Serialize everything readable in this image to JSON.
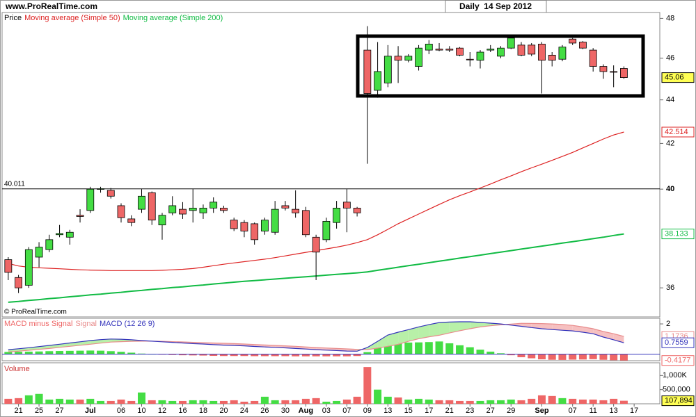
{
  "header": {
    "site": "www.ProRealTime.com",
    "period": "Daily  14 Sep 2012"
  },
  "chart_data": [
    {
      "type": "candlestick",
      "log_scale": true,
      "ylim": [
        34.9,
        48.3
      ],
      "yticks": [
        36,
        40,
        42,
        44,
        46,
        48
      ],
      "hline": 40.011,
      "footer": "© ProRealTime.com",
      "price": {
        "name": "Price",
        "up_color": "#44dd44",
        "down_color": "#ee6666",
        "open": [
          37.1,
          36.4,
          36.1,
          37.2,
          37.5,
          38.1,
          38.0,
          38.9,
          39.1,
          40.0,
          39.95,
          39.3,
          38.75,
          39.15,
          39.85,
          38.5,
          39.0,
          39.15,
          39.1,
          39.0,
          39.2,
          39.2,
          38.7,
          38.6,
          38.55,
          38.25,
          38.2,
          39.3,
          39.15,
          39.1,
          38.0,
          37.9,
          38.6,
          39.45,
          39.2,
          46.4,
          44.45,
          44.8,
          46.1,
          45.9,
          45.6,
          46.4,
          46.45,
          46.45,
          46.5,
          45.95,
          45.9,
          46.4,
          46.1,
          46.5,
          46.65,
          46.65,
          46.7,
          46.15,
          45.95,
          46.95,
          46.8,
          46.4,
          45.6,
          45.35,
          45.5
        ],
        "high": [
          37.2,
          36.5,
          37.6,
          37.8,
          38.1,
          38.5,
          38.3,
          39.15,
          40.1,
          40.1,
          40.05,
          39.4,
          38.9,
          40.0,
          39.9,
          39.0,
          39.7,
          39.45,
          40.0,
          39.35,
          39.65,
          39.3,
          38.8,
          38.7,
          38.6,
          38.8,
          39.5,
          39.5,
          39.95,
          39.25,
          38.1,
          38.8,
          39.5,
          40.0,
          39.25,
          47.6,
          46.8,
          46.65,
          46.6,
          46.2,
          46.65,
          46.9,
          46.75,
          46.6,
          46.55,
          46.3,
          46.4,
          46.65,
          46.6,
          47.1,
          46.8,
          46.75,
          46.8,
          46.3,
          46.65,
          47.0,
          46.85,
          46.5,
          45.7,
          45.65,
          45.6
        ],
        "low": [
          36.3,
          35.8,
          36.0,
          36.8,
          37.4,
          38.0,
          37.7,
          38.6,
          39.0,
          39.85,
          39.6,
          38.6,
          38.45,
          39.0,
          38.5,
          37.9,
          38.9,
          38.75,
          38.6,
          38.75,
          39.0,
          39.0,
          38.25,
          38.0,
          37.7,
          38.1,
          38.1,
          39.1,
          38.8,
          38.0,
          36.3,
          37.8,
          38.35,
          38.2,
          38.85,
          41.1,
          44.1,
          44.6,
          44.8,
          45.8,
          45.4,
          46.2,
          46.35,
          46.3,
          46.1,
          45.6,
          45.5,
          46.3,
          46.0,
          46.45,
          46.1,
          46.1,
          44.3,
          45.6,
          45.85,
          46.65,
          46.45,
          45.35,
          45.0,
          44.6,
          45.0
        ],
        "close": [
          36.6,
          36.0,
          37.5,
          37.6,
          37.9,
          38.15,
          38.2,
          38.85,
          40.0,
          40.02,
          39.7,
          38.8,
          38.6,
          39.7,
          38.7,
          38.9,
          39.3,
          38.95,
          39.2,
          39.2,
          39.45,
          39.1,
          38.35,
          38.25,
          37.9,
          38.7,
          39.15,
          39.2,
          39.0,
          38.1,
          37.4,
          38.65,
          39.2,
          39.2,
          39.0,
          44.3,
          45.35,
          46.1,
          45.9,
          46.1,
          46.5,
          46.7,
          46.4,
          46.4,
          46.15,
          45.92,
          46.3,
          46.45,
          46.5,
          47.0,
          46.15,
          46.2,
          45.9,
          45.9,
          46.55,
          46.75,
          46.5,
          45.6,
          45.35,
          45.33,
          45.06
        ]
      },
      "series": [
        {
          "name": "Moving average (Simple 50)",
          "color": "#dd2222",
          "values": [
            36.95,
            36.85,
            36.8,
            36.78,
            36.76,
            36.74,
            36.72,
            36.7,
            36.69,
            36.68,
            36.67,
            36.67,
            36.67,
            36.67,
            36.67,
            36.68,
            36.7,
            36.72,
            36.75,
            36.8,
            36.86,
            36.92,
            36.97,
            37.02,
            37.07,
            37.12,
            37.18,
            37.25,
            37.32,
            37.39,
            37.46,
            37.53,
            37.6,
            37.68,
            37.78,
            37.9,
            38.1,
            38.32,
            38.55,
            38.75,
            38.95,
            39.15,
            39.35,
            39.55,
            39.72,
            39.88,
            40.05,
            40.22,
            40.4,
            40.57,
            40.75,
            40.92,
            41.08,
            41.25,
            41.42,
            41.6,
            41.8,
            42.0,
            42.2,
            42.38,
            42.514
          ]
        },
        {
          "name": "Moving average (Simple 200)",
          "color": "#11bb44",
          "values": [
            35.45,
            35.48,
            35.52,
            35.55,
            35.59,
            35.62,
            35.66,
            35.69,
            35.73,
            35.76,
            35.8,
            35.83,
            35.87,
            35.9,
            35.94,
            35.97,
            36.01,
            36.04,
            36.08,
            36.11,
            36.15,
            36.18,
            36.22,
            36.25,
            36.28,
            36.31,
            36.34,
            36.37,
            36.4,
            36.43,
            36.46,
            36.49,
            36.52,
            36.55,
            36.58,
            36.62,
            36.68,
            36.74,
            36.8,
            36.86,
            36.92,
            36.98,
            37.04,
            37.1,
            37.16,
            37.22,
            37.28,
            37.34,
            37.4,
            37.46,
            37.52,
            37.58,
            37.64,
            37.7,
            37.76,
            37.82,
            37.88,
            37.94,
            38.0,
            38.07,
            38.133
          ]
        }
      ]
    },
    {
      "type": "macd",
      "ylim": [
        -0.43,
        2.37
      ],
      "yticks": [
        2
      ],
      "series": [
        {
          "name": "MACD minus Signal",
          "color": "#ee6666",
          "up_color": "#44dd44",
          "down_color": "#ee6666",
          "values": [
            0.15,
            0.16,
            0.17,
            0.18,
            0.2,
            0.21,
            0.22,
            0.23,
            0.24,
            0.23,
            0.2,
            0.16,
            0.1,
            0.04,
            0.0,
            -0.03,
            -0.05,
            -0.07,
            -0.08,
            -0.09,
            -0.11,
            -0.12,
            -0.12,
            -0.12,
            -0.13,
            -0.13,
            -0.13,
            -0.13,
            -0.14,
            -0.14,
            -0.14,
            -0.14,
            -0.14,
            -0.14,
            -0.12,
            0.14,
            0.45,
            0.75,
            0.8,
            0.77,
            0.78,
            0.8,
            0.84,
            0.72,
            0.59,
            0.46,
            0.3,
            0.17,
            0.06,
            -0.07,
            -0.2,
            -0.27,
            -0.34,
            -0.37,
            -0.38,
            -0.36,
            -0.35,
            -0.33,
            -0.37,
            -0.4,
            -0.4177
          ]
        },
        {
          "name": "Signal",
          "color": "#e88c8c",
          "values": [
            0.15,
            0.2,
            0.26,
            0.32,
            0.38,
            0.45,
            0.52,
            0.59,
            0.66,
            0.73,
            0.8,
            0.83,
            0.85,
            0.86,
            0.86,
            0.85,
            0.83,
            0.81,
            0.78,
            0.76,
            0.74,
            0.72,
            0.7,
            0.67,
            0.64,
            0.61,
            0.58,
            0.55,
            0.52,
            0.48,
            0.44,
            0.41,
            0.38,
            0.35,
            0.32,
            0.3,
            0.4,
            0.52,
            0.65,
            0.85,
            1.02,
            1.15,
            1.25,
            1.4,
            1.55,
            1.68,
            1.8,
            1.88,
            1.94,
            1.99,
            2.04,
            2.03,
            2.02,
            2.0,
            1.96,
            1.9,
            1.8,
            1.68,
            1.5,
            1.35,
            1.1736
          ]
        },
        {
          "name": "MACD (12 26 9)",
          "color": "#3333bb",
          "values": [
            0.3,
            0.36,
            0.43,
            0.5,
            0.58,
            0.66,
            0.74,
            0.82,
            0.9,
            0.96,
            1.0,
            0.99,
            0.95,
            0.9,
            0.86,
            0.82,
            0.78,
            0.74,
            0.7,
            0.67,
            0.63,
            0.6,
            0.58,
            0.55,
            0.51,
            0.48,
            0.45,
            0.42,
            0.38,
            0.34,
            0.3,
            0.27,
            0.24,
            0.21,
            0.2,
            0.44,
            0.85,
            1.27,
            1.45,
            1.62,
            1.8,
            1.95,
            2.09,
            2.12,
            2.14,
            2.14,
            2.1,
            2.05,
            2.0,
            1.92,
            1.84,
            1.76,
            1.68,
            1.63,
            1.58,
            1.54,
            1.45,
            1.35,
            1.13,
            0.95,
            0.7559
          ]
        }
      ]
    },
    {
      "type": "bar",
      "title": "Volume",
      "ylim": [
        0,
        1450000
      ],
      "yticks": [
        {
          "value": 1000000,
          "label": "1,000K"
        },
        {
          "value": 500000,
          "label": "500,000"
        }
      ],
      "values": [
        175000,
        200000,
        300000,
        350000,
        150000,
        175000,
        150000,
        150000,
        175000,
        100000,
        100000,
        150000,
        100000,
        400000,
        125000,
        125000,
        100000,
        100000,
        125000,
        125000,
        100000,
        100000,
        125000,
        75000,
        100000,
        250000,
        125000,
        125000,
        125000,
        175000,
        200000,
        75000,
        100000,
        150000,
        250000,
        1300000,
        500000,
        250000,
        225000,
        150000,
        175000,
        150000,
        125000,
        125000,
        100000,
        100000,
        100000,
        125000,
        125000,
        150000,
        125000,
        175000,
        300000,
        275000,
        200000,
        175000,
        150000,
        150000,
        125000,
        175000,
        107894
      ],
      "last_value_label": "107,894",
      "xlim": [
        -0.6,
        63.5
      ],
      "xticks": [
        {
          "value": 1,
          "label": "21"
        },
        {
          "value": 3,
          "label": "25"
        },
        {
          "value": 5,
          "label": "27"
        },
        {
          "value": 8,
          "label": "Jul"
        },
        {
          "value": 11,
          "label": "06"
        },
        {
          "value": 13,
          "label": "10"
        },
        {
          "value": 15,
          "label": "12"
        },
        {
          "value": 17,
          "label": "16"
        },
        {
          "value": 19,
          "label": "18"
        },
        {
          "value": 21,
          "label": "20"
        },
        {
          "value": 23,
          "label": "24"
        },
        {
          "value": 25,
          "label": "26"
        },
        {
          "value": 27,
          "label": "30"
        },
        {
          "value": 29,
          "label": "Aug"
        },
        {
          "value": 31,
          "label": "03"
        },
        {
          "value": 33,
          "label": "07"
        },
        {
          "value": 35,
          "label": "09"
        },
        {
          "value": 37,
          "label": "13"
        },
        {
          "value": 39,
          "label": "15"
        },
        {
          "value": 41,
          "label": "17"
        },
        {
          "value": 43,
          "label": "21"
        },
        {
          "value": 45,
          "label": "23"
        },
        {
          "value": 47,
          "label": "27"
        },
        {
          "value": 49,
          "label": "29"
        },
        {
          "value": 52,
          "label": "Sep"
        },
        {
          "value": 55,
          "label": "07"
        },
        {
          "value": 57,
          "label": "11"
        },
        {
          "value": 59,
          "label": "13"
        },
        {
          "value": 61,
          "label": "17"
        }
      ]
    }
  ]
}
